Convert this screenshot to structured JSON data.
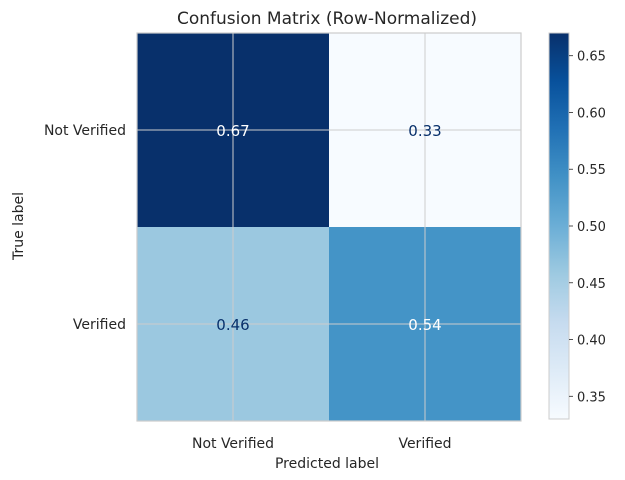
{
  "chart_data": {
    "type": "heatmap",
    "title": "Confusion Matrix (Row-Normalized)",
    "xlabel": "Predicted label",
    "ylabel": "True label",
    "x_categories": [
      "Not Verified",
      "Verified"
    ],
    "y_categories": [
      "Not Verified",
      "Verified"
    ],
    "values": [
      [
        0.67,
        0.33
      ],
      [
        0.46,
        0.54
      ]
    ],
    "value_labels": [
      [
        "0.67",
        "0.33"
      ],
      [
        "0.46",
        "0.54"
      ]
    ],
    "colormap": "Blues",
    "colorbar": {
      "min": 0.33,
      "max": 0.67,
      "ticks": [
        0.35,
        0.4,
        0.45,
        0.5,
        0.55,
        0.6,
        0.65
      ],
      "tick_labels": [
        "0.35",
        "0.40",
        "0.45",
        "0.50",
        "0.55",
        "0.60",
        "0.65"
      ]
    },
    "grid": true,
    "text_color_dark_cell": "#ffffff",
    "text_color_light_cell": "#08306b"
  }
}
